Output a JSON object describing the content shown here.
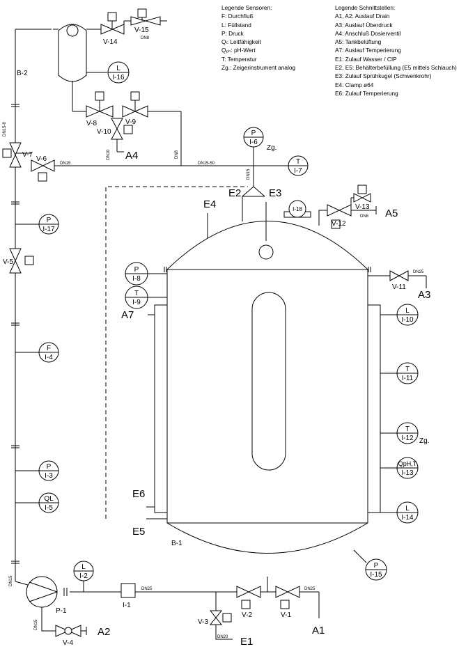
{
  "legend_sensors": {
    "title": "Legende Sensoren:",
    "items": [
      "F: Durchfluß",
      "L: Füllstand",
      "P: Druck",
      "Qₗ: Leitfähigkeit",
      "Qₚₕ: pH-Wert",
      "T: Temperatur",
      "Zg.: Zeigerinstrument analog"
    ]
  },
  "legend_interfaces": {
    "title": "Legende Schnittstellen:",
    "items": [
      "A1, A2: Auslauf Drain",
      "A3: Auslauf Überdruck",
      "A4: Anschluß Dosierventil",
      "A5: Tankbelüftung",
      "A7: Auslauf Temperierung",
      "E1: Zulauf Wasser / CIP",
      "E2, E5: Behälterbefüllung (E5 mittels Schlauch)",
      "E3: Zulauf Sprühkugel (Schwenkrohr)",
      "E4: Clamp ø64",
      "E6: Zulauf Temperierung"
    ]
  },
  "vessels": {
    "b1": "B-1",
    "b2": "B-2"
  },
  "pump": "P-1",
  "flow_element": "I-1",
  "valves": {
    "v1": "V-1",
    "v2": "V-2",
    "v3": "V-3",
    "v4": "V-4",
    "v5": "V-5",
    "v6": "V-6",
    "v7": "V-7",
    "v8": "V-8",
    "v9": "V-9",
    "v10": "V-10",
    "v11": "V-11",
    "v12": "V-12",
    "v13": "V-13",
    "v14": "V-14",
    "v15": "V-15"
  },
  "instruments": [
    {
      "id": "i2",
      "type": "L",
      "tag": "I-2"
    },
    {
      "id": "i3",
      "type": "P",
      "tag": "I-3"
    },
    {
      "id": "i4",
      "type": "F",
      "tag": "I-4"
    },
    {
      "id": "i5",
      "type": "QL",
      "tag": "I-5"
    },
    {
      "id": "i6",
      "type": "P",
      "tag": "I-6"
    },
    {
      "id": "i7",
      "type": "T",
      "tag": "I-7"
    },
    {
      "id": "i8",
      "type": "P",
      "tag": "I-8"
    },
    {
      "id": "i9",
      "type": "T",
      "tag": "I-9"
    },
    {
      "id": "i10",
      "type": "L",
      "tag": "I-10"
    },
    {
      "id": "i11",
      "type": "T",
      "tag": "I-11"
    },
    {
      "id": "i12",
      "type": "T",
      "tag": "I-12"
    },
    {
      "id": "i13",
      "type": "QpH,T",
      "tag": "I-13"
    },
    {
      "id": "i14",
      "type": "L",
      "tag": "I-14"
    },
    {
      "id": "i15",
      "type": "P",
      "tag": "I-15"
    },
    {
      "id": "i16",
      "type": "L",
      "tag": "I-16"
    },
    {
      "id": "i17",
      "type": "P",
      "tag": "I-17"
    }
  ],
  "sightglass": "I-18",
  "zg_label": "Zg.",
  "ports": {
    "a1": "A1",
    "a2": "A2",
    "a3": "A3",
    "a4": "A4",
    "a5": "A5",
    "a7": "A7",
    "e1": "E1",
    "e2": "E2",
    "e3": "E3",
    "e4": "E4",
    "e5": "E5",
    "e6": "E6"
  },
  "pipe_labels": {
    "dn15_8": "DN15-8",
    "dn15_a": "DN15",
    "dn15_50": "DN15-50",
    "dn8_a": "DN8",
    "dn10": "DN10",
    "dn8_b": "DN8",
    "dn8_c": "DN8",
    "dn15_b": "DN15",
    "dn25_a": "DN25",
    "dn15_c": "DN15",
    "dn15_d": "DN15",
    "dn25_b": "DN25",
    "dn20": "DN20",
    "dn25_c": "DN25"
  }
}
